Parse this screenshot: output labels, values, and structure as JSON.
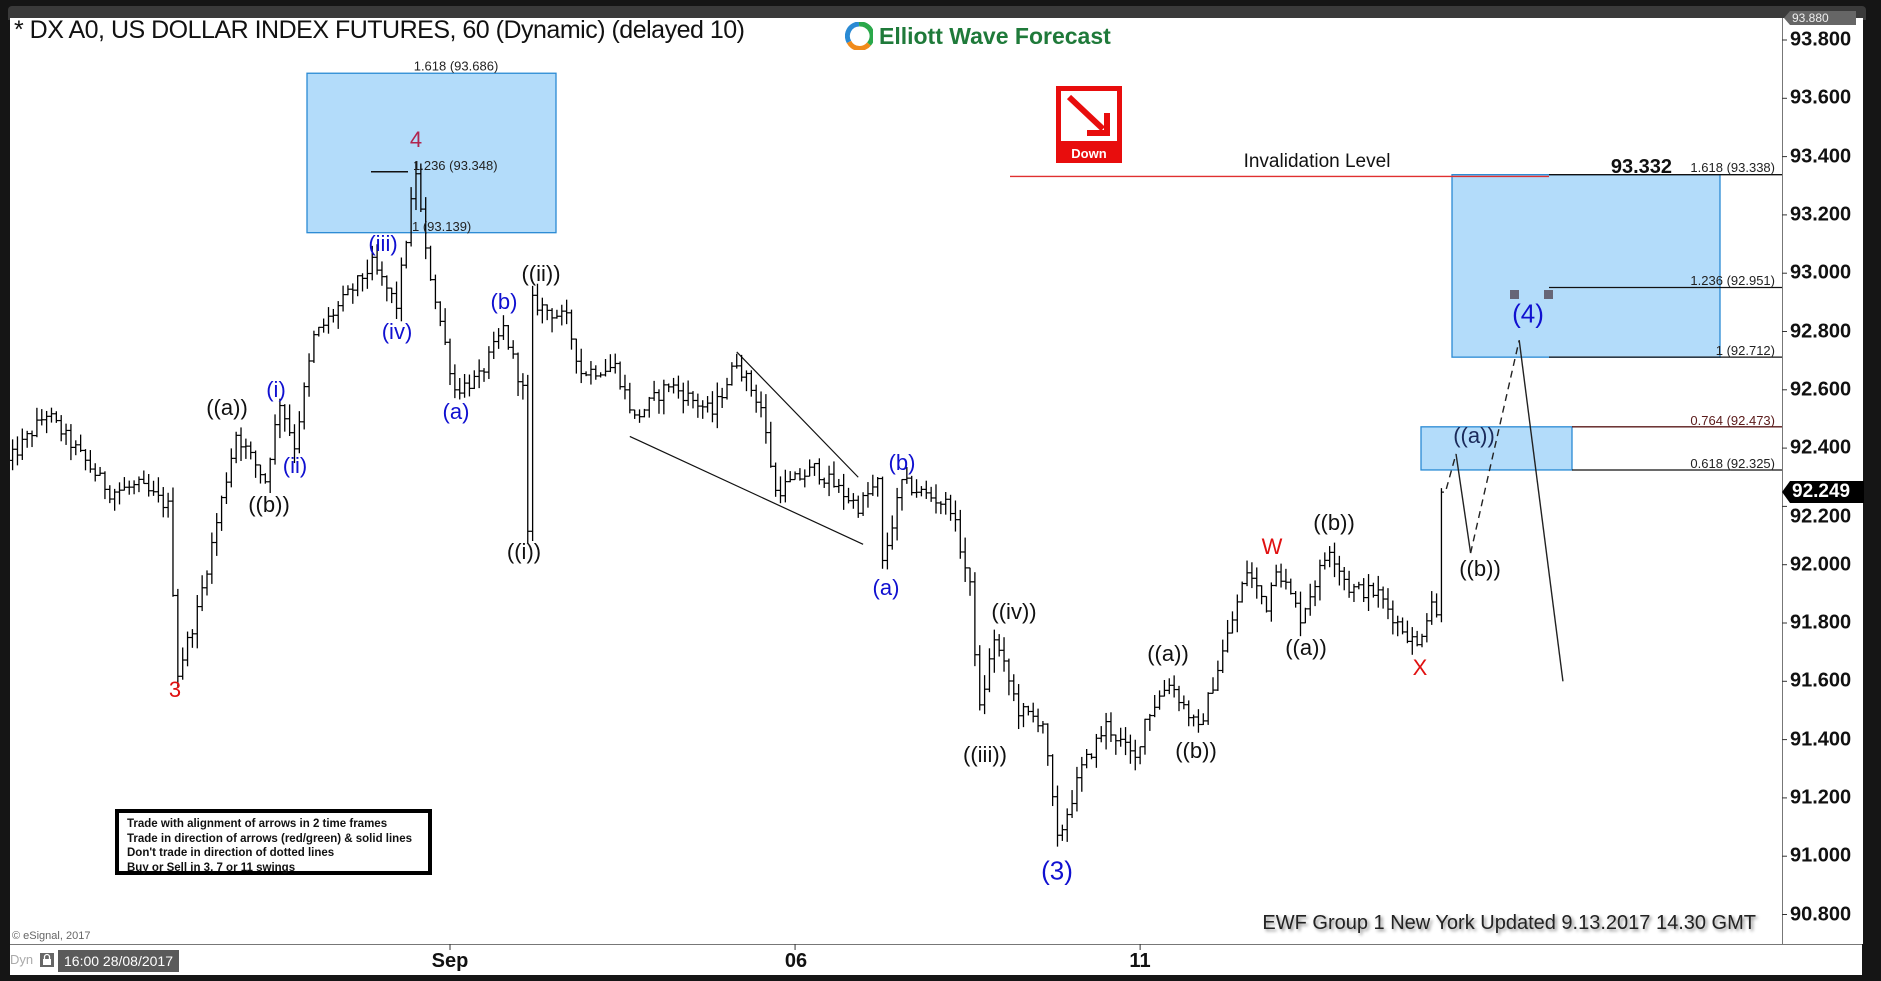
{
  "header": {
    "title": "* DX A0, US DOLLAR INDEX FUTURES, 60 (Dynamic) (delayed 10)",
    "logo_text": "Elliott Wave Forecast",
    "direction_icon": "down-arrow-icon",
    "direction_label": "Down"
  },
  "colors": {
    "box_fill": "#b3dcfa",
    "box_border": "#2a8ad4",
    "invalidation_line": "#e03030",
    "wave_blue": "#1010d0",
    "wave_red": "#e01010",
    "down_badge": "#e80d0d",
    "logo_green": "#1f7a3a"
  },
  "legend_box": {
    "lines": [
      "Trade with alignment of arrows in 2 time frames",
      "Trade in direction of arrows (red/green) & solid lines",
      "Don't trade in direction of dotted lines",
      "Buy or Sell in 3, 7 or 11 swings"
    ]
  },
  "footer": {
    "copyright": "© eSignal, 2017",
    "dyn_label": "Dyn",
    "cursor_time": "16:00 28/08/2017",
    "update_text": "EWF Group 1 New York Updated 9.13.2017 14.30 GMT"
  },
  "chart_data": {
    "type": "ohlc",
    "interval": "60",
    "y_axis": {
      "ticks": [
        "93.800",
        "93.600",
        "93.400",
        "93.200",
        "93.000",
        "92.800",
        "92.600",
        "92.400",
        "92.200",
        "92.000",
        "91.800",
        "91.600",
        "91.400",
        "91.200",
        "91.000",
        "90.800"
      ],
      "range": [
        90.74,
        93.88
      ],
      "position": "right",
      "top_marker": "93.880",
      "last_price": "92.249"
    },
    "x_axis": {
      "ticks": [
        {
          "label": "Sep",
          "time": "2017-09-01 00:00"
        },
        {
          "label": "06",
          "time": "2017-09-06 00:00"
        },
        {
          "label": "11",
          "time": "2017-09-11 00:00"
        }
      ]
    },
    "grid": false,
    "price_path": [
      [
        "2017-08-28 05:00",
        92.35
      ],
      [
        "2017-08-28 13:00",
        92.52
      ],
      [
        "2017-08-29 02:00",
        92.25
      ],
      [
        "2017-08-29 08:00",
        92.27
      ],
      [
        "2017-08-29 14:00",
        92.2
      ],
      [
        "2017-08-29 16:00",
        91.63
      ],
      [
        "2017-08-29 20:00",
        91.84
      ],
      [
        "2017-08-30 04:00",
        92.45
      ],
      [
        "2017-08-30 10:00",
        92.29
      ],
      [
        "2017-08-30 13:00",
        92.56
      ],
      [
        "2017-08-30 16:00",
        92.41
      ],
      [
        "2017-08-30 20:00",
        92.78
      ],
      [
        "2017-08-31 08:00",
        93.03
      ],
      [
        "2017-08-31 13:00",
        92.89
      ],
      [
        "2017-08-31 17:00",
        93.35
      ],
      [
        "2017-08-31 19:00",
        93.07
      ],
      [
        "2017-09-01 01:00",
        92.6
      ],
      [
        "2017-09-01 06:00",
        92.64
      ],
      [
        "2017-09-01 11:00",
        92.81
      ],
      [
        "2017-09-01 15:00",
        92.6
      ],
      [
        "2017-09-01 16:00",
        92.1
      ],
      [
        "2017-09-03 18:00",
        92.9
      ],
      [
        "2017-09-04 01:00",
        92.84
      ],
      [
        "2017-09-04 04:00",
        92.66
      ],
      [
        "2017-09-04 11:00",
        92.68
      ],
      [
        "2017-09-04 15:00",
        92.5
      ],
      [
        "2017-09-04 22:00",
        92.62
      ],
      [
        "2017-09-05 07:00",
        92.52
      ],
      [
        "2017-09-05 12:00",
        92.7
      ],
      [
        "2017-09-05 17:00",
        92.54
      ],
      [
        "2017-09-05 20:00",
        92.25
      ],
      [
        "2017-09-06 04:00",
        92.33
      ],
      [
        "2017-09-06 13:00",
        92.2
      ],
      [
        "2017-09-06 17:00",
        92.28
      ],
      [
        "2017-09-06 18:00",
        92.0
      ],
      [
        "2017-09-06 22:00",
        92.28
      ],
      [
        "2017-09-07 08:00",
        92.2
      ],
      [
        "2017-09-07 12:00",
        91.92
      ],
      [
        "2017-09-07 14:00",
        91.5
      ],
      [
        "2017-09-07 17:00",
        91.75
      ],
      [
        "2017-09-07 22:00",
        91.5
      ],
      [
        "2017-09-08 03:00",
        91.46
      ],
      [
        "2017-09-08 06:00",
        91.05
      ],
      [
        "2017-09-08 11:00",
        91.3
      ],
      [
        "2017-09-08 16:00",
        91.45
      ],
      [
        "2017-09-10 23:00",
        91.33
      ],
      [
        "2017-09-11 01:00",
        91.47
      ],
      [
        "2017-09-11 06:00",
        91.6
      ],
      [
        "2017-09-11 12:00",
        91.43
      ],
      [
        "2017-09-11 17:00",
        91.7
      ],
      [
        "2017-09-11 22:00",
        91.98
      ],
      [
        "2017-09-12 02:00",
        91.86
      ],
      [
        "2017-09-12 04:00",
        92.0
      ],
      [
        "2017-09-12 09:00",
        91.82
      ],
      [
        "2017-09-12 15:00",
        92.06
      ],
      [
        "2017-09-12 19:00",
        91.92
      ],
      [
        "2017-09-13 01:00",
        91.9
      ],
      [
        "2017-09-13 05:00",
        91.8
      ],
      [
        "2017-09-13 09:00",
        91.72
      ],
      [
        "2017-09-13 12:00",
        91.88
      ],
      [
        "2017-09-13 13:00",
        91.82
      ],
      [
        "2017-09-13 14:00",
        92.249
      ]
    ],
    "projection": {
      "segments": [
        {
          "style": "dashed",
          "points": [
            [
              "2017-09-13 15:00",
              92.26
            ],
            [
              "2017-09-13 17:00",
              92.38
            ]
          ]
        },
        {
          "style": "solid",
          "points": [
            [
              "2017-09-13 17:00",
              92.38
            ],
            [
              "2017-09-13 20:00",
              92.04
            ]
          ]
        },
        {
          "style": "dashed",
          "points": [
            [
              "2017-09-13 20:00",
              92.04
            ],
            [
              "2017-09-14 06:00",
              92.77
            ]
          ]
        },
        {
          "style": "solid",
          "points": [
            [
              "2017-09-14 06:00",
              92.77
            ],
            [
              "2017-09-14 15:00",
              91.6
            ]
          ]
        }
      ]
    },
    "wedge_lines": [
      [
        [
          "2017-09-04 14:00",
          92.44
        ],
        [
          "2017-09-06 14:00",
          92.07
        ]
      ],
      [
        [
          "2017-09-05 12:00",
          92.73
        ],
        [
          "2017-09-06 13:00",
          92.3
        ]
      ]
    ],
    "fib_boxes": [
      {
        "top": 93.686,
        "bottom": 93.139
      },
      {
        "top": 93.338,
        "bottom": 92.712
      },
      {
        "top": 92.473,
        "bottom": 92.325
      }
    ],
    "fib_labels_left": {
      "l1618": "1.618 (93.686)",
      "l1236": "1.236 (93.348)",
      "l1": "1 (93.139)"
    },
    "fib_levels_right": [
      {
        "label": "1.618 (93.338)",
        "price": 93.338
      },
      {
        "label": "1.236 (92.951)",
        "price": 92.951
      },
      {
        "label": "1 (92.712)",
        "price": 92.712
      },
      {
        "label": "0.764 (92.473)",
        "price": 92.473
      },
      {
        "label": "0.618 (92.325)",
        "price": 92.325
      }
    ],
    "invalidation": {
      "label": "Invalidation Level",
      "value": "93.332",
      "price": 93.332
    },
    "wave_labels": {
      "w3": "3",
      "w4": "4",
      "a1": "((a))",
      "b1": "((b))",
      "i": "(i)",
      "ii": "(ii)",
      "iii": "(iii)",
      "iv": "(iv)",
      "sa1": "(a)",
      "sb1": "(b)",
      "ci": "((i))",
      "cii": "((ii))",
      "sb2": "(b)",
      "sa2": "(a)",
      "civ": "((iv))",
      "ciii": "((iii))",
      "p3": "(3)",
      "a2": "((a))",
      "b2": "((b))",
      "W": "W",
      "b3": "((b))",
      "a3": "((a))",
      "X": "X",
      "a4": "((a))",
      "b4": "((b))",
      "p4": "(4)"
    }
  }
}
